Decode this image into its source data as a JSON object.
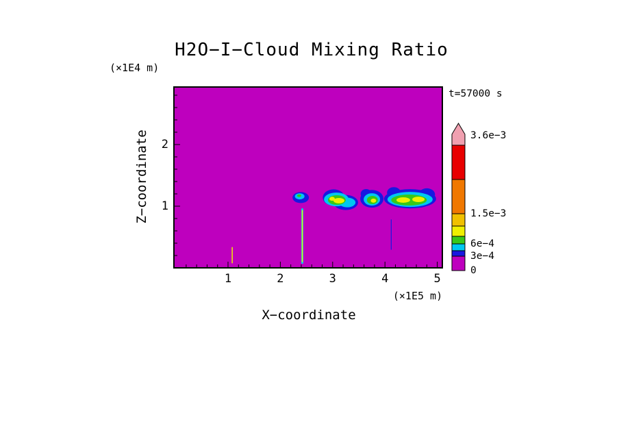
{
  "chart_data": {
    "type": "heatmap",
    "title": "H2O−I−Cloud Mixing Ratio",
    "time_label": "t=57000 s",
    "xlabel": "X−coordinate",
    "xlabel_units": "(×1E5 m)",
    "ylabel": "Z−coordinate",
    "ylabel_units": "(×1E4 m)",
    "xlim": [
      0,
      5.1
    ],
    "ylim": [
      0,
      2.93
    ],
    "x_ticks": [
      1,
      2,
      3,
      4,
      5
    ],
    "y_ticks": [
      1,
      2
    ],
    "x_minor_step": 0.2,
    "y_minor_step": 0.2,
    "grid": false,
    "field_background_value": 0,
    "levels": [
      0,
      0.0003,
      0.00045,
      0.0006,
      0.0009,
      0.0012,
      0.0015,
      0.0024,
      0.0036
    ],
    "level_colors": [
      "#BE00BE",
      "#1818E0",
      "#00C8F0",
      "#38C818",
      "#F0F000",
      "#F0C000",
      "#F07800",
      "#E80000"
    ],
    "overflow_color": "#F0A0B0",
    "colorbar": {
      "position": "right",
      "tick_labels": [
        {
          "text": "3.6e−3",
          "value": 0.0036
        },
        {
          "text": "1.5e−3",
          "value": 0.0015
        },
        {
          "text": "6e−4",
          "value": 0.0006
        },
        {
          "text": "3e−4",
          "value": 0.0003
        },
        {
          "text": "0",
          "value": 0
        }
      ]
    },
    "clouds": [
      {
        "name": "small-cloud",
        "cells": [
          {
            "x": 2.39,
            "z": 1.14,
            "rx": 0.157,
            "rz": 0.089,
            "v": 0.00035
          },
          {
            "x": 2.37,
            "z": 1.16,
            "rx": 0.092,
            "rz": 0.05,
            "v": 0.0005
          },
          {
            "x": 2.36,
            "z": 1.17,
            "rx": 0.039,
            "rz": 0.022,
            "v": 0.0007
          }
        ]
      },
      {
        "name": "cloud-west",
        "cells": [
          {
            "x": 3.02,
            "z": 1.14,
            "rx": 0.209,
            "rz": 0.133,
            "v": 0.00035
          },
          {
            "x": 3.25,
            "z": 1.06,
            "rx": 0.236,
            "rz": 0.122,
            "v": 0.00035
          },
          {
            "x": 3.07,
            "z": 1.11,
            "rx": 0.236,
            "rz": 0.111,
            "v": 0.0005
          },
          {
            "x": 3.28,
            "z": 1.06,
            "rx": 0.157,
            "rz": 0.078,
            "v": 0.0005
          },
          {
            "x": 3.08,
            "z": 1.1,
            "rx": 0.17,
            "rz": 0.078,
            "v": 0.0007
          },
          {
            "x": 3.12,
            "z": 1.09,
            "rx": 0.105,
            "rz": 0.044,
            "v": 0.001
          },
          {
            "x": 2.99,
            "z": 1.12,
            "rx": 0.052,
            "rz": 0.033,
            "v": 0.001
          }
        ]
      },
      {
        "name": "cloud-middle",
        "cells": [
          {
            "x": 3.75,
            "z": 1.12,
            "rx": 0.222,
            "rz": 0.144,
            "v": 0.00035
          },
          {
            "x": 3.64,
            "z": 1.2,
            "rx": 0.105,
            "rz": 0.078,
            "v": 0.00035
          },
          {
            "x": 3.75,
            "z": 1.11,
            "rx": 0.157,
            "rz": 0.1,
            "v": 0.0005
          },
          {
            "x": 3.76,
            "z": 1.1,
            "rx": 0.105,
            "rz": 0.067,
            "v": 0.0007
          },
          {
            "x": 3.78,
            "z": 1.09,
            "rx": 0.052,
            "rz": 0.033,
            "v": 0.001
          }
        ]
      },
      {
        "name": "cloud-east-large",
        "cells": [
          {
            "x": 4.48,
            "z": 1.12,
            "rx": 0.497,
            "rz": 0.156,
            "v": 0.00035
          },
          {
            "x": 4.17,
            "z": 1.22,
            "rx": 0.131,
            "rz": 0.089,
            "v": 0.00035
          },
          {
            "x": 4.8,
            "z": 1.19,
            "rx": 0.157,
            "rz": 0.1,
            "v": 0.00035
          },
          {
            "x": 4.48,
            "z": 1.11,
            "rx": 0.432,
            "rz": 0.122,
            "v": 0.0005
          },
          {
            "x": 4.46,
            "z": 1.1,
            "rx": 0.34,
            "rz": 0.089,
            "v": 0.0007
          },
          {
            "x": 4.35,
            "z": 1.1,
            "rx": 0.131,
            "rz": 0.044,
            "v": 0.001
          },
          {
            "x": 4.64,
            "z": 1.11,
            "rx": 0.118,
            "rz": 0.044,
            "v": 0.001
          }
        ]
      }
    ],
    "streaks": [
      {
        "x": 1.08,
        "z0": 0.08,
        "z1": 0.33,
        "w": 1.5,
        "v": 0.00095
      },
      {
        "x": 2.42,
        "z0": 0.08,
        "z1": 0.95,
        "w": 3.0,
        "v": 0.0005
      },
      {
        "x": 2.42,
        "z0": 0.1,
        "z1": 0.93,
        "w": 1.5,
        "v": 0.00095
      },
      {
        "x": 4.12,
        "z0": 0.3,
        "z1": 0.78,
        "w": 1.2,
        "v": 0.00035
      }
    ]
  }
}
